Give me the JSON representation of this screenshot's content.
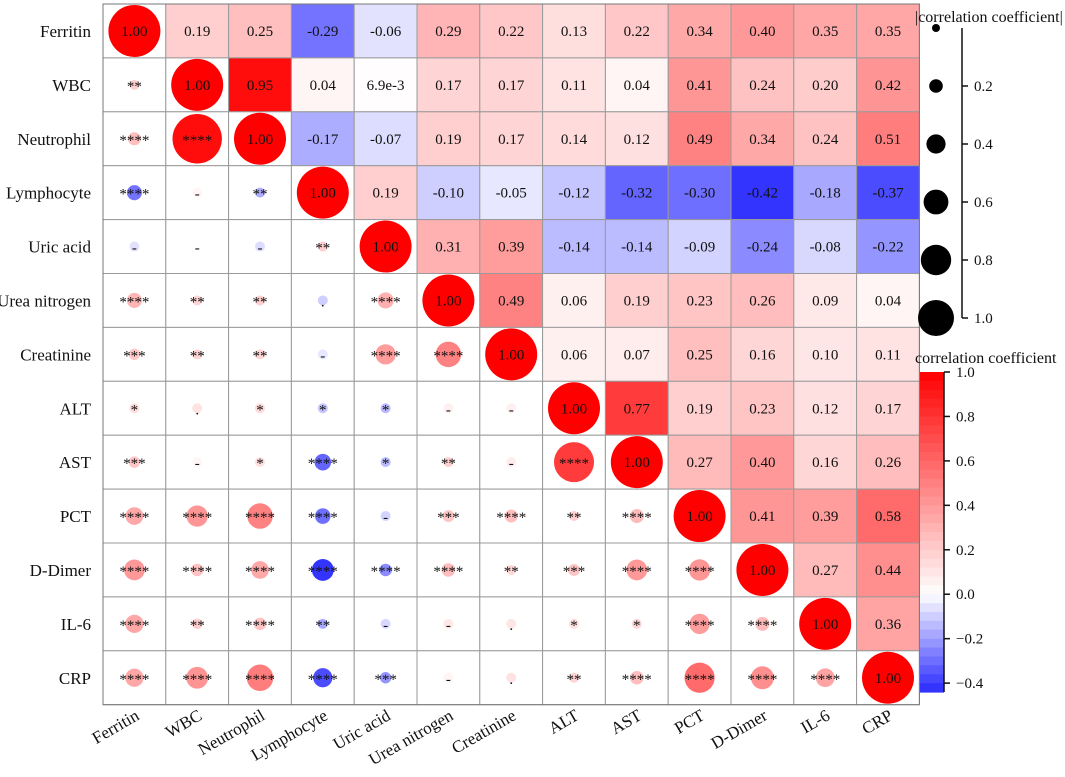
{
  "chart_data": {
    "type": "heatmap",
    "variables": [
      "Ferritin",
      "WBC",
      "Neutrophil",
      "Lymphocyte",
      "Uric acid",
      "Urea nitrogen",
      "Creatinine",
      "ALT",
      "AST",
      "PCT",
      "D-Dimer",
      "IL-6",
      "CRP"
    ],
    "upper_labels": [
      [
        "1.00",
        "0.19",
        "0.25",
        "-0.29",
        "-0.06",
        "0.29",
        "0.22",
        "0.13",
        "0.22",
        "0.34",
        "0.40",
        "0.35",
        "0.35"
      ],
      [
        "",
        "1.00",
        "0.95",
        "0.04",
        "6.9e-3",
        "0.17",
        "0.17",
        "0.11",
        "0.04",
        "0.41",
        "0.24",
        "0.20",
        "0.42"
      ],
      [
        "",
        "",
        "1.00",
        "-0.17",
        "-0.07",
        "0.19",
        "0.17",
        "0.14",
        "0.12",
        "0.49",
        "0.34",
        "0.24",
        "0.51"
      ],
      [
        "",
        "",
        "",
        "1.00",
        "0.19",
        "-0.10",
        "-0.05",
        "-0.12",
        "-0.32",
        "-0.30",
        "-0.42",
        "-0.18",
        "-0.37"
      ],
      [
        "",
        "",
        "",
        "",
        "1.00",
        "0.31",
        "0.39",
        "-0.14",
        "-0.14",
        "-0.09",
        "-0.24",
        "-0.08",
        "-0.22"
      ],
      [
        "",
        "",
        "",
        "",
        "",
        "1.00",
        "0.49",
        "0.06",
        "0.19",
        "0.23",
        "0.26",
        "0.09",
        "0.04"
      ],
      [
        "",
        "",
        "",
        "",
        "",
        "",
        "1.00",
        "0.06",
        "0.07",
        "0.25",
        "0.16",
        "0.10",
        "0.11"
      ],
      [
        "",
        "",
        "",
        "",
        "",
        "",
        "",
        "1.00",
        "0.77",
        "0.19",
        "0.23",
        "0.12",
        "0.17"
      ],
      [
        "",
        "",
        "",
        "",
        "",
        "",
        "",
        "",
        "1.00",
        "0.27",
        "0.40",
        "0.16",
        "0.26"
      ],
      [
        "",
        "",
        "",
        "",
        "",
        "",
        "",
        "",
        "",
        "1.00",
        "0.41",
        "0.39",
        "0.58"
      ],
      [
        "",
        "",
        "",
        "",
        "",
        "",
        "",
        "",
        "",
        "",
        "1.00",
        "0.27",
        "0.44"
      ],
      [
        "",
        "",
        "",
        "",
        "",
        "",
        "",
        "",
        "",
        "",
        "",
        "1.00",
        "0.36"
      ],
      [
        "",
        "",
        "",
        "",
        "",
        "",
        "",
        "",
        "",
        "",
        "",
        "",
        "1.00"
      ]
    ],
    "significance": [
      [
        "",
        "",
        "",
        "",
        "",
        "",
        "",
        "",
        "",
        "",
        "",
        "",
        ""
      ],
      [
        "**",
        "",
        "",
        "",
        "",
        "",
        "",
        "",
        "",
        "",
        "",
        "",
        ""
      ],
      [
        "****",
        "****",
        "",
        "",
        "",
        "",
        "",
        "",
        "",
        "",
        "",
        "",
        ""
      ],
      [
        "****",
        "-",
        "**",
        "",
        "",
        "",
        "",
        "",
        "",
        "",
        "",
        "",
        ""
      ],
      [
        "-",
        "-",
        "-",
        "**",
        "",
        "",
        "",
        "",
        "",
        "",
        "",
        "",
        ""
      ],
      [
        "****",
        "**",
        "**",
        ".",
        "****",
        "",
        "",
        "",
        "",
        "",
        "",
        "",
        ""
      ],
      [
        "***",
        "**",
        "**",
        "-",
        "****",
        "****",
        "",
        "",
        "",
        "",
        "",
        "",
        ""
      ],
      [
        "*",
        ".",
        "*",
        "*",
        "*",
        "-",
        "-",
        "",
        "",
        "",
        "",
        "",
        ""
      ],
      [
        "***",
        "-",
        "*",
        "****",
        "*",
        "**",
        "-",
        "****",
        "",
        "",
        "",
        "",
        ""
      ],
      [
        "****",
        "****",
        "****",
        "****",
        "-",
        "***",
        "****",
        "**",
        "****",
        "",
        "",
        "",
        ""
      ],
      [
        "****",
        "****",
        "****",
        "****",
        "****",
        "****",
        "**",
        "***",
        "****",
        "****",
        "",
        "",
        ""
      ],
      [
        "****",
        "**",
        "****",
        "**",
        "-",
        "-",
        ".",
        "*",
        "*",
        "****",
        "****",
        "",
        ""
      ],
      [
        "****",
        "****",
        "****",
        "****",
        "***",
        "-",
        ".",
        "**",
        "****",
        "****",
        "****",
        "****",
        ""
      ]
    ],
    "size_legend": {
      "title": "|correlation coefficient|",
      "ticks": [
        "0.2",
        "0.4",
        "0.6",
        "0.8",
        "1.0"
      ],
      "values": [
        0.0,
        0.2,
        0.4,
        0.6,
        0.8,
        1.0
      ]
    },
    "color_legend": {
      "title": "correlation coefficient",
      "ticks": [
        "1.0",
        "0.8",
        "0.6",
        "0.4",
        "0.2",
        "0.0",
        "−0.2",
        "−0.4"
      ],
      "min": -0.44,
      "max": 1.0,
      "low_color": "#2a2aff",
      "mid_color": "#ffffff",
      "high_color": "#ff0000"
    }
  }
}
